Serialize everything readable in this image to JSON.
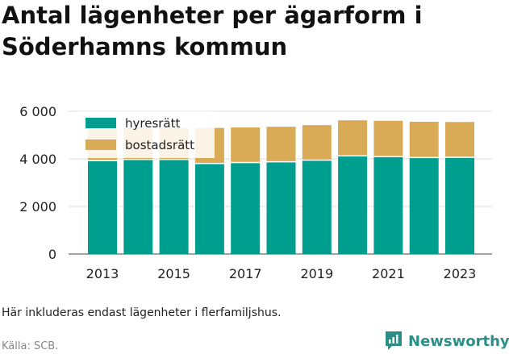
{
  "title": "Antal lägenheter per ägarform i Söderhamns kommun",
  "note": "Här inkluderas endast lägenheter i flerfamiljshus.",
  "source": "Källa: SCB.",
  "brand": {
    "name": "Newsworthy",
    "icon": "newsworthy-logo-icon"
  },
  "colors": {
    "hyresratt": "#009e8e",
    "bostadsratt": "#d9ab57",
    "grid": "#dddddd"
  },
  "chart_data": {
    "type": "bar",
    "stacked": true,
    "categories": [
      "2013",
      "2014",
      "2015",
      "2016",
      "2017",
      "2018",
      "2019",
      "2020",
      "2021",
      "2022",
      "2023"
    ],
    "x_tick_labels": [
      "2013",
      "2015",
      "2017",
      "2019",
      "2021",
      "2023"
    ],
    "y_tick_labels": [
      "0",
      "2 000",
      "4 000",
      "6 000"
    ],
    "ylim": [
      0,
      6000
    ],
    "grid": true,
    "legend_position": "top-left",
    "series": [
      {
        "name": "hyresrätt",
        "color": "#009e8e",
        "values": [
          3900,
          3950,
          3950,
          3780,
          3820,
          3850,
          3920,
          4100,
          4070,
          4030,
          4040
        ]
      },
      {
        "name": "bostadsrätt",
        "color": "#d9ab57",
        "values": [
          1350,
          1350,
          1350,
          1520,
          1500,
          1500,
          1500,
          1520,
          1530,
          1530,
          1510
        ]
      }
    ]
  }
}
